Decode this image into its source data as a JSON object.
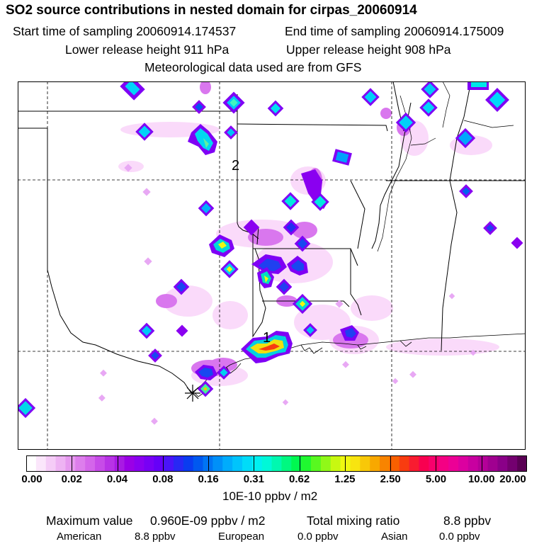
{
  "header": {
    "title": "SO2 source contributions in nested domain for cirpas_20060914",
    "start": "Start time of sampling 20060914.174537",
    "end": "End time of sampling 20060914.175009",
    "lower": "Lower release height  911 hPa",
    "upper": "Upper release height  908 hPa",
    "met": "Meteorological data used are from GFS"
  },
  "map": {
    "markers": [
      "1",
      "2"
    ]
  },
  "colorbar": {
    "ticks": [
      "0.00",
      "0.02",
      "0.04",
      "0.08",
      "0.16",
      "0.31",
      "0.62",
      "1.25",
      "2.50",
      "5.00",
      "10.00",
      "20.00"
    ],
    "colors": [
      "#ffffff",
      "#fbe6fb",
      "#f5ccf7",
      "#eeb3f3",
      "#e699ef",
      "#dd7eec",
      "#d466ea",
      "#c74ce8",
      "#b833e6",
      "#a81ae3",
      "#9a00e6",
      "#8a00f0",
      "#7800f5",
      "#6600f8",
      "#4a14f8",
      "#2828f4",
      "#0a3cf0",
      "#0058f0",
      "#0074f4",
      "#0090f8",
      "#00acfc",
      "#00c4fc",
      "#00dcf8",
      "#00f0f0",
      "#00f8d8",
      "#00f8b0",
      "#00f880",
      "#00f850",
      "#20f830",
      "#58f820",
      "#90f818",
      "#c8f810",
      "#f0f810",
      "#f8e410",
      "#f8c808",
      "#f8a800",
      "#f88400",
      "#f86000",
      "#f83c10",
      "#f81c30",
      "#f80050",
      "#f8006c",
      "#f40084",
      "#ec0096",
      "#dc00a0",
      "#c800a0",
      "#b40098",
      "#a00090",
      "#8a0088",
      "#740070",
      "#5a0054"
    ],
    "units": "10E-10 ppbv / m2"
  },
  "summary": {
    "max_label": "Maximum value",
    "max_value": "0.960E-09 ppbv / m2",
    "total_label": "Total mixing ratio",
    "total_value": "8.8 ppbv",
    "american_label": "American",
    "american_value": "8.8 ppbv",
    "european_label": "European",
    "european_value": "0.0 ppbv",
    "asian_label": "Asian",
    "asian_value": "0.0 ppbv"
  }
}
